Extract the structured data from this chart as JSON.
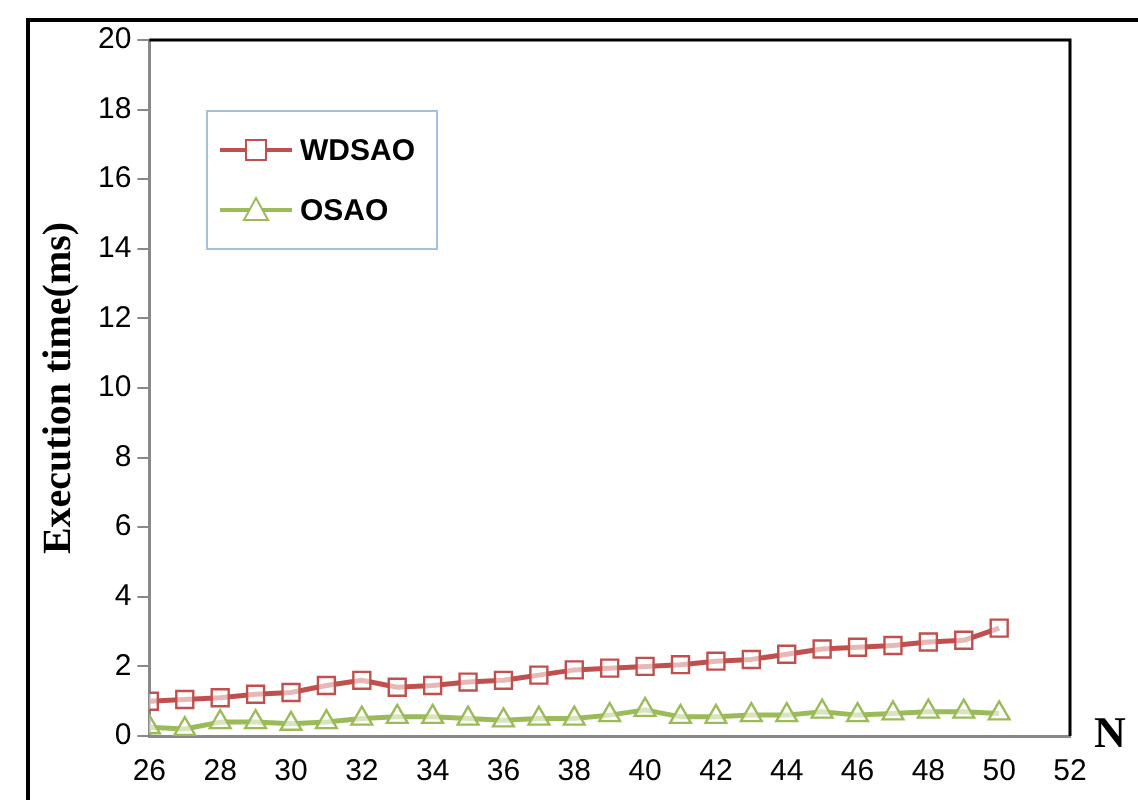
{
  "chart_data": {
    "type": "line",
    "xlabel": "N",
    "ylabel": "Execution time(ms)",
    "x": [
      26,
      27,
      28,
      29,
      30,
      31,
      32,
      33,
      34,
      35,
      36,
      37,
      38,
      39,
      40,
      41,
      42,
      43,
      44,
      45,
      46,
      47,
      48,
      49,
      50
    ],
    "series": [
      {
        "name": "WDSAO",
        "color": "#c0504d",
        "marker": "square",
        "values": [
          1.0,
          1.05,
          1.1,
          1.2,
          1.25,
          1.45,
          1.6,
          1.4,
          1.45,
          1.55,
          1.6,
          1.75,
          1.9,
          1.95,
          2.0,
          2.05,
          2.15,
          2.2,
          2.35,
          2.5,
          2.55,
          2.6,
          2.7,
          2.75,
          3.1
        ]
      },
      {
        "name": "OSAO",
        "color": "#9bbb59",
        "marker": "triangle",
        "values": [
          0.25,
          0.2,
          0.4,
          0.4,
          0.35,
          0.4,
          0.5,
          0.55,
          0.55,
          0.5,
          0.45,
          0.5,
          0.5,
          0.6,
          0.75,
          0.55,
          0.55,
          0.6,
          0.6,
          0.7,
          0.6,
          0.65,
          0.7,
          0.7,
          0.65
        ]
      }
    ],
    "xlim": [
      26,
      52
    ],
    "xticks": [
      26,
      28,
      30,
      32,
      34,
      36,
      38,
      40,
      42,
      44,
      46,
      48,
      50,
      52
    ],
    "ylim": [
      0,
      20
    ],
    "yticks": [
      0,
      2,
      4,
      6,
      8,
      10,
      12,
      14,
      16,
      18,
      20
    ],
    "grid": false,
    "legend": "top left",
    "line_style": "solid"
  }
}
